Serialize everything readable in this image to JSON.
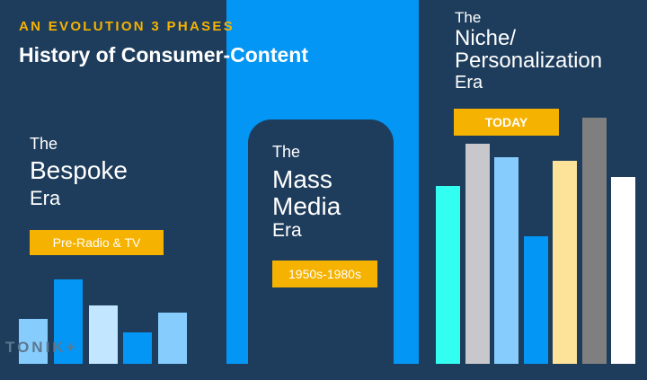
{
  "header": {
    "kicker": "AN EVOLUTION 3 PHASES",
    "title": "History of Consumer-Content"
  },
  "eras": [
    {
      "line1": "The",
      "line2": "Bespoke",
      "line3": "Era",
      "tag": "Pre-Radio & TV"
    },
    {
      "line1": "The",
      "line2": "Mass",
      "line3": "Media",
      "line4": "Era",
      "tag": "1950s-1980s"
    },
    {
      "line1": "The",
      "line2": "Niche/",
      "line3": "Personalization",
      "line4": "Era",
      "tag": "TODAY"
    }
  ],
  "bars": {
    "left": [
      {
        "value": 50,
        "color": "#86cdfd"
      },
      {
        "value": 94,
        "color": "#0396f4"
      },
      {
        "value": 65,
        "color": "#c2e6ff"
      },
      {
        "value": 35,
        "color": "#0396f4"
      },
      {
        "value": 57,
        "color": "#86cdfd"
      }
    ],
    "right": [
      {
        "value": 198,
        "color": "#33fff0"
      },
      {
        "value": 245,
        "color": "#c8c8cc"
      },
      {
        "value": 230,
        "color": "#86cdfd"
      },
      {
        "value": 142,
        "color": "#0396f4"
      },
      {
        "value": 226,
        "color": "#fde39a"
      },
      {
        "value": 274,
        "color": "#7f7f7f"
      },
      {
        "value": 208,
        "color": "#ffffff"
      }
    ]
  },
  "logo": "TONIK+"
}
